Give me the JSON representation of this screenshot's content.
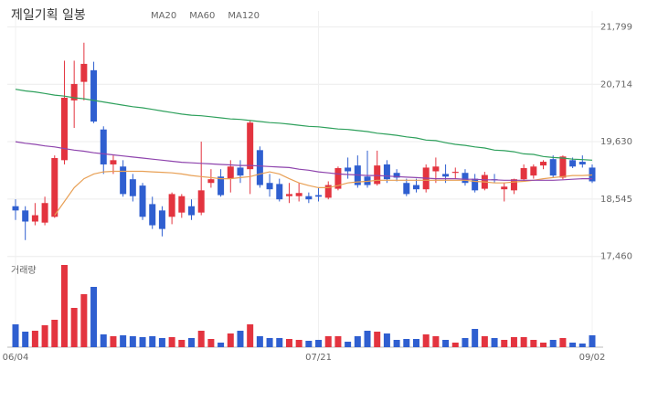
{
  "chart_data": {
    "type": "candlestick",
    "title": "제일기획 일봉",
    "categories": [
      "06/04",
      null,
      null,
      null,
      null,
      null,
      null,
      null,
      null,
      null,
      null,
      null,
      null,
      null,
      null,
      null,
      null,
      null,
      null,
      null,
      null,
      null,
      null,
      null,
      null,
      null,
      null,
      null,
      null,
      null,
      null,
      "07/21",
      null,
      null,
      null,
      null,
      null,
      null,
      null,
      null,
      null,
      null,
      null,
      null,
      null,
      null,
      null,
      null,
      null,
      null,
      null,
      null,
      null,
      null,
      null,
      null,
      null,
      null,
      null,
      "09/02"
    ],
    "open": [
      18410,
      18330,
      18120,
      18100,
      18210,
      19280,
      20410,
      20760,
      20980,
      19860,
      19200,
      19160,
      18920,
      18800,
      18450,
      18330,
      18210,
      18290,
      18410,
      18290,
      18850,
      18970,
      18930,
      19140,
      19110,
      19470,
      18850,
      18830,
      18600,
      18600,
      18600,
      18620,
      18570,
      18740,
      19140,
      19180,
      18970,
      18830,
      19200,
      19040,
      18850,
      18810,
      18730,
      19070,
      19020,
      19040,
      19040,
      18930,
      18740,
      18920,
      18730,
      18710,
      18920,
      18990,
      19180,
      19300,
      18950,
      19280,
      19250,
      19140
    ],
    "high": [
      18540,
      18410,
      18470,
      18590,
      19370,
      21160,
      21160,
      21500,
      21140,
      19920,
      19370,
      19280,
      19020,
      18850,
      18590,
      18410,
      18670,
      18640,
      18540,
      19630,
      19110,
      19110,
      19280,
      19280,
      20030,
      19540,
      19020,
      18930,
      18850,
      18850,
      18670,
      18760,
      18880,
      19160,
      19330,
      19370,
      19460,
      19460,
      19280,
      19110,
      18930,
      18930,
      19200,
      19330,
      19200,
      19140,
      19110,
      19020,
      19060,
      19020,
      18850,
      18930,
      19200,
      19200,
      19280,
      19370,
      19370,
      19330,
      19370,
      19200
    ],
    "low": [
      18150,
      17770,
      18050,
      18050,
      18190,
      19200,
      19890,
      20410,
      19980,
      19020,
      19020,
      18590,
      18500,
      18150,
      17980,
      17840,
      18070,
      18190,
      18150,
      18240,
      18760,
      18590,
      18670,
      18850,
      18640,
      18760,
      18590,
      18500,
      18470,
      18500,
      18470,
      18500,
      18540,
      18710,
      18930,
      18760,
      18760,
      18800,
      18850,
      18880,
      18600,
      18670,
      18670,
      18850,
      18850,
      18930,
      18800,
      18670,
      18710,
      18850,
      18500,
      18640,
      18880,
      18930,
      19110,
      18950,
      18920,
      19130,
      19140,
      18850
    ],
    "close": [
      18330,
      18120,
      18240,
      18470,
      19320,
      20460,
      20720,
      21100,
      20010,
      19200,
      19280,
      18640,
      18600,
      18210,
      18050,
      17980,
      18640,
      18600,
      18240,
      18710,
      18920,
      18620,
      19160,
      18990,
      19990,
      18810,
      18730,
      18540,
      18640,
      18660,
      18540,
      18590,
      18810,
      19130,
      19070,
      18810,
      18810,
      19180,
      18920,
      18950,
      18640,
      18730,
      19140,
      19160,
      18970,
      19060,
      18850,
      18710,
      19000,
      18900,
      18780,
      18920,
      19130,
      19160,
      19250,
      18990,
      19350,
      19160,
      19200,
      18880
    ],
    "up_color": "#e3343f",
    "down_color": "#2f5fd0",
    "series": [
      {
        "name": "MA20",
        "color": "#e8a055",
        "values": [
          null,
          null,
          null,
          null,
          18240,
          18500,
          18760,
          18930,
          19020,
          19060,
          19070,
          19070,
          19070,
          19070,
          19060,
          19050,
          19040,
          19020,
          18990,
          18970,
          18950,
          18930,
          18930,
          18950,
          18970,
          19020,
          19060,
          19020,
          18930,
          18850,
          18800,
          18760,
          18760,
          18800,
          18850,
          18870,
          18880,
          18900,
          18900,
          18900,
          18900,
          18900,
          18900,
          18900,
          18900,
          18900,
          18900,
          18880,
          18870,
          18850,
          18850,
          18870,
          18880,
          18900,
          18930,
          18950,
          18970,
          18990,
          18990,
          19000
        ]
      },
      {
        "name": "MA60",
        "color": "#8e44ad",
        "values": [
          19630,
          19600,
          19580,
          19550,
          19530,
          19500,
          19470,
          19450,
          19420,
          19400,
          19380,
          19360,
          19340,
          19320,
          19300,
          19280,
          19260,
          19240,
          19230,
          19220,
          19210,
          19200,
          19190,
          19180,
          19180,
          19170,
          19160,
          19150,
          19140,
          19110,
          19090,
          19060,
          19040,
          19020,
          19010,
          19000,
          18990,
          18990,
          18980,
          18970,
          18960,
          18950,
          18940,
          18930,
          18930,
          18930,
          18920,
          18920,
          18910,
          18910,
          18900,
          18900,
          18900,
          18900,
          18900,
          18900,
          18910,
          18920,
          18930,
          18930
        ]
      },
      {
        "name": "MA120",
        "color": "#2ea05c",
        "values": [
          20620,
          20590,
          20570,
          20540,
          20510,
          20490,
          20460,
          20440,
          20410,
          20380,
          20350,
          20320,
          20290,
          20270,
          20240,
          20210,
          20180,
          20150,
          20130,
          20120,
          20100,
          20080,
          20060,
          20050,
          20030,
          20010,
          19990,
          19980,
          19960,
          19940,
          19920,
          19910,
          19890,
          19870,
          19860,
          19840,
          19820,
          19790,
          19770,
          19750,
          19720,
          19700,
          19660,
          19650,
          19610,
          19580,
          19560,
          19530,
          19510,
          19470,
          19460,
          19440,
          19400,
          19390,
          19350,
          19330,
          19320,
          19300,
          19290,
          19280
        ]
      }
    ],
    "ylim": [
      17300,
      22100
    ],
    "yticks": [
      {
        "value": 17460,
        "label": "17,460"
      },
      {
        "value": 18545,
        "label": "18,545"
      },
      {
        "value": 19630,
        "label": "19,630"
      },
      {
        "value": 20714,
        "label": "20,714"
      },
      {
        "value": 21799,
        "label": "21,799"
      }
    ],
    "grid": true,
    "volume": {
      "label": "거래량",
      "values": [
        25,
        17,
        18,
        24,
        30,
        90,
        43,
        58,
        66,
        14,
        12,
        13,
        12,
        11,
        12,
        10,
        11,
        8,
        10,
        18,
        9,
        5,
        15,
        18,
        25,
        12,
        10,
        10,
        9,
        8,
        7,
        8,
        12,
        12,
        6,
        12,
        18,
        17,
        15,
        8,
        9,
        9,
        14,
        12,
        8,
        5,
        10,
        20,
        12,
        10,
        8,
        11,
        11,
        8,
        5,
        8,
        10,
        5,
        4,
        13
      ]
    }
  }
}
